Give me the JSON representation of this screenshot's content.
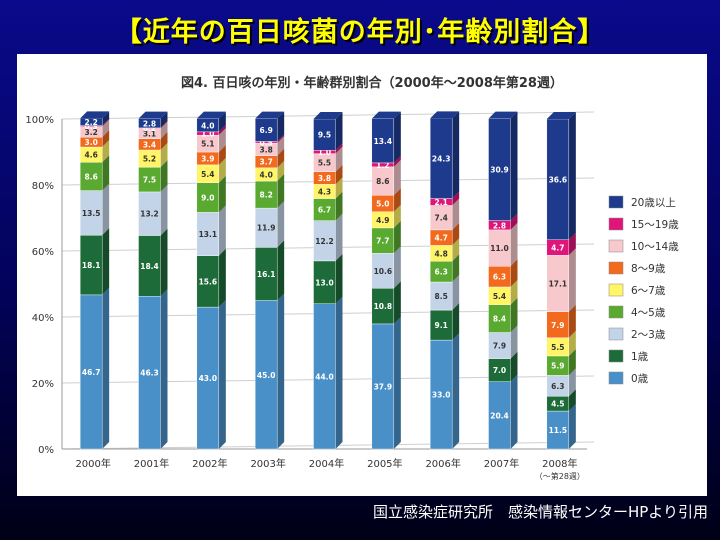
{
  "slide_title": "【近年の百日咳菌の年別･年齢別割合】",
  "footer": "国立感染症研究所　感染情報センターHPより引用",
  "colors": {
    "background_top": "#0a0a8c",
    "background_bottom": "#000016",
    "title": "#ffff00",
    "panel": "#ffffff"
  },
  "chart_data": {
    "type": "bar",
    "stacked": true,
    "title": "図4. 百日咳の年別・年齢群別割合（2000年〜2008年第28週）",
    "xlabel": "",
    "ylabel": "",
    "ylim": [
      0,
      100
    ],
    "y_ticks": [
      "0%",
      "20%",
      "40%",
      "60%",
      "80%",
      "100%"
    ],
    "grid": true,
    "legend_position": "right",
    "categories": [
      "2000年",
      "2001年",
      "2002年",
      "2003年",
      "2004年",
      "2005年",
      "2006年",
      "2007年",
      "2008年"
    ],
    "category_note": "（〜第28週）",
    "series": [
      {
        "name": "0歳",
        "color": "#4a90c8",
        "values": [
          46.7,
          46.3,
          43.0,
          45.0,
          44.0,
          37.9,
          33.0,
          20.4,
          11.5
        ]
      },
      {
        "name": "1歳",
        "color": "#1e6b3a",
        "values": [
          18.1,
          18.4,
          15.6,
          16.1,
          13.0,
          10.8,
          9.1,
          7.0,
          4.5
        ]
      },
      {
        "name": "2〜3歳",
        "color": "#c4d4e8",
        "values": [
          13.5,
          13.2,
          13.1,
          11.9,
          12.2,
          10.6,
          8.5,
          7.9,
          6.3
        ]
      },
      {
        "name": "4〜5歳",
        "color": "#5aaa32",
        "values": [
          8.6,
          7.5,
          9.0,
          8.2,
          6.7,
          7.7,
          6.3,
          8.4,
          5.9
        ]
      },
      {
        "name": "6〜7歳",
        "color": "#fff566",
        "values": [
          4.6,
          5.2,
          5.4,
          4.0,
          4.3,
          4.9,
          4.8,
          5.4,
          5.5
        ]
      },
      {
        "name": "8〜9歳",
        "color": "#f26a1e",
        "values": [
          3.0,
          3.4,
          3.9,
          3.7,
          3.8,
          5.0,
          4.7,
          6.3,
          7.9
        ]
      },
      {
        "name": "10〜14歳",
        "color": "#f7c8cc",
        "values": [
          3.2,
          3.1,
          5.1,
          3.8,
          5.5,
          8.6,
          7.4,
          11.0,
          17.1
        ]
      },
      {
        "name": "15〜19歳",
        "color": "#e0157a",
        "values": [
          0.3,
          0.2,
          1.0,
          0.5,
          1.0,
          1.2,
          2.1,
          2.8,
          4.7
        ]
      },
      {
        "name": "20歳以上",
        "color": "#1e3a8c",
        "values": [
          2.2,
          2.8,
          4.0,
          6.9,
          9.5,
          13.4,
          24.3,
          30.9,
          36.6
        ]
      }
    ]
  }
}
